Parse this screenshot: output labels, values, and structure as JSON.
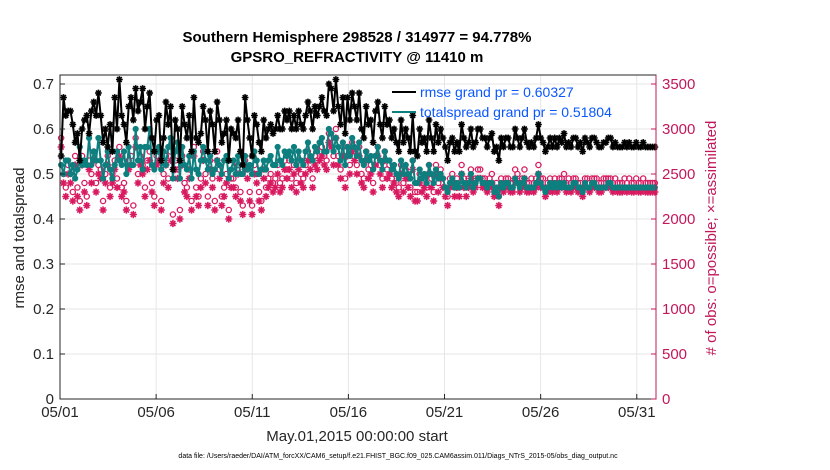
{
  "chart_data": {
    "type": "line",
    "title": "Southern Hemisphere 298528 / 314977 = 94.778%",
    "subtitle": "GPSRO_REFRACTIVITY @ 11410 m",
    "xlabel": "May.01,2015 00:00:00 start",
    "ylabel": "rmse and totalspread",
    "y2label": "# of obs: o=possible; ×=assimilated",
    "footer": "data file: /Users/raeder/DAI/ATM_forcXX/CAM6_setup/f.e21.FHIST_BGC.f09_025.CAM6assim.011/Diags_NTrS_2015-05/obs_diag_output.nc",
    "x_ticks": [
      "05/01",
      "05/06",
      "05/11",
      "05/16",
      "05/21",
      "05/26",
      "05/31"
    ],
    "x_tick_days": [
      0,
      5,
      10,
      15,
      20,
      25,
      30
    ],
    "xlim_days": [
      0,
      31
    ],
    "ylim": [
      0,
      0.72
    ],
    "y_ticks": [
      "0",
      "0.1",
      "0.2",
      "0.3",
      "0.4",
      "0.5",
      "0.6",
      "0.7"
    ],
    "y2lim": [
      0,
      3600
    ],
    "y2_ticks": [
      "0",
      "500",
      "1000",
      "1500",
      "2000",
      "2500",
      "3000",
      "3500"
    ],
    "grid": true,
    "legend_position": "top-right",
    "colors": {
      "rmse": "#000000",
      "totalspread": "#0e7f7f",
      "obs": "#d81b60",
      "legend_text": "#0a57ff",
      "right_axis": "#c2185b",
      "grid": "#e6e6e6"
    },
    "series": [
      {
        "name": "rmse grand pr = 0.60327",
        "axis": "left",
        "marker": "asterisk",
        "values": [
          0.54,
          0.67,
          0.63,
          0.64,
          0.64,
          0.61,
          0.57,
          0.59,
          0.53,
          0.6,
          0.62,
          0.63,
          0.59,
          0.64,
          0.66,
          0.63,
          0.68,
          0.63,
          0.57,
          0.6,
          0.56,
          0.61,
          0.55,
          0.67,
          0.6,
          0.71,
          0.63,
          0.61,
          0.57,
          0.65,
          0.67,
          0.62,
          0.69,
          0.64,
          0.66,
          0.69,
          0.6,
          0.65,
          0.68,
          0.58,
          0.55,
          0.62,
          0.63,
          0.53,
          0.58,
          0.66,
          0.61,
          0.65,
          0.51,
          0.62,
          0.6,
          0.53,
          0.65,
          0.61,
          0.58,
          0.63,
          0.55,
          0.67,
          0.58,
          0.57,
          0.59,
          0.65,
          0.62,
          0.55,
          0.64,
          0.61,
          0.55,
          0.66,
          0.62,
          0.57,
          0.59,
          0.62,
          0.53,
          0.6,
          0.59,
          0.58,
          0.62,
          0.55,
          0.52,
          0.67,
          0.62,
          0.58,
          0.54,
          0.63,
          0.61,
          0.57,
          0.55,
          0.62,
          0.58,
          0.6,
          0.61,
          0.59,
          0.6,
          0.63,
          0.6,
          0.6,
          0.64,
          0.62,
          0.64,
          0.6,
          0.63,
          0.6,
          0.64,
          0.61,
          0.6,
          0.63,
          0.66,
          0.64,
          0.6,
          0.65,
          0.63,
          0.65,
          0.67,
          0.64,
          0.63,
          0.7,
          0.69,
          0.64,
          0.71,
          0.65,
          0.61,
          0.67,
          0.59,
          0.67,
          0.62,
          0.68,
          0.65,
          0.62,
          0.68,
          0.6,
          0.58,
          0.65,
          0.61,
          0.62,
          0.57,
          0.64,
          0.66,
          0.61,
          0.58,
          0.65,
          0.61,
          0.62,
          0.58,
          0.6,
          0.57,
          0.55,
          0.62,
          0.57,
          0.6,
          0.58,
          0.55,
          0.63,
          0.55,
          0.54,
          0.6,
          0.57,
          0.58,
          0.55,
          0.62,
          0.58,
          0.55,
          0.61,
          0.57,
          0.6,
          0.58,
          0.56,
          0.53,
          0.57,
          0.58,
          0.55,
          0.57,
          0.55,
          0.61,
          0.58,
          0.56,
          0.57,
          0.6,
          0.56,
          0.57,
          0.6,
          0.6,
          0.58,
          0.58,
          0.56,
          0.58,
          0.59,
          0.55,
          0.56,
          0.53,
          0.58,
          0.56,
          0.58,
          0.58,
          0.56,
          0.56,
          0.6,
          0.58,
          0.56,
          0.58,
          0.6,
          0.57,
          0.56,
          0.57,
          0.56,
          0.58,
          0.61,
          0.58,
          0.57,
          0.55,
          0.56,
          0.58,
          0.56,
          0.58,
          0.56,
          0.58,
          0.57,
          0.59,
          0.56,
          0.57,
          0.56,
          0.58,
          0.58,
          0.56,
          0.57,
          0.55,
          0.58,
          0.57,
          0.56,
          0.58,
          0.58,
          0.57,
          0.56,
          0.56,
          0.57,
          0.57,
          0.58,
          0.58,
          0.56,
          0.57,
          0.56,
          0.56,
          0.56,
          0.57,
          0.56,
          0.57,
          0.56,
          0.56,
          0.57,
          0.56,
          0.56,
          0.57,
          0.56,
          0.56,
          0.56,
          0.56,
          0.56
        ]
      },
      {
        "name": "totalspread grand pr = 0.51804",
        "axis": "left",
        "marker": "circle",
        "values": [
          0.52,
          0.5,
          0.53,
          0.53,
          0.5,
          0.52,
          0.49,
          0.51,
          0.56,
          0.52,
          0.53,
          0.52,
          0.58,
          0.52,
          0.55,
          0.53,
          0.58,
          0.53,
          0.49,
          0.52,
          0.55,
          0.51,
          0.49,
          0.52,
          0.55,
          0.53,
          0.52,
          0.55,
          0.5,
          0.56,
          0.52,
          0.52,
          0.6,
          0.53,
          0.56,
          0.51,
          0.56,
          0.56,
          0.6,
          0.52,
          0.51,
          0.55,
          0.56,
          0.51,
          0.55,
          0.52,
          0.56,
          0.58,
          0.49,
          0.55,
          0.57,
          0.49,
          0.56,
          0.52,
          0.51,
          0.54,
          0.49,
          0.55,
          0.51,
          0.5,
          0.53,
          0.56,
          0.53,
          0.51,
          0.54,
          0.5,
          0.51,
          0.53,
          0.52,
          0.5,
          0.53,
          0.54,
          0.49,
          0.51,
          0.53,
          0.5,
          0.54,
          0.5,
          0.5,
          0.54,
          0.51,
          0.52,
          0.5,
          0.55,
          0.53,
          0.5,
          0.51,
          0.53,
          0.51,
          0.53,
          0.54,
          0.52,
          0.52,
          0.56,
          0.53,
          0.52,
          0.55,
          0.54,
          0.55,
          0.53,
          0.56,
          0.52,
          0.55,
          0.53,
          0.52,
          0.55,
          0.57,
          0.54,
          0.53,
          0.56,
          0.55,
          0.57,
          0.58,
          0.55,
          0.55,
          0.6,
          0.59,
          0.55,
          0.58,
          0.56,
          0.53,
          0.57,
          0.52,
          0.56,
          0.54,
          0.58,
          0.56,
          0.54,
          0.57,
          0.53,
          0.52,
          0.55,
          0.53,
          0.54,
          0.51,
          0.54,
          0.56,
          0.53,
          0.51,
          0.55,
          0.53,
          0.53,
          0.51,
          0.52,
          0.5,
          0.49,
          0.53,
          0.5,
          0.52,
          0.5,
          0.49,
          0.53,
          0.48,
          0.48,
          0.51,
          0.49,
          0.5,
          0.48,
          0.52,
          0.5,
          0.48,
          0.51,
          0.49,
          0.5,
          0.49,
          0.47,
          0.46,
          0.48,
          0.49,
          0.47,
          0.48,
          0.47,
          0.5,
          0.48,
          0.47,
          0.48,
          0.5,
          0.47,
          0.48,
          0.49,
          0.49,
          0.48,
          0.48,
          0.47,
          0.48,
          0.48,
          0.46,
          0.47,
          0.45,
          0.48,
          0.47,
          0.48,
          0.48,
          0.47,
          0.47,
          0.49,
          0.48,
          0.47,
          0.48,
          0.49,
          0.47,
          0.47,
          0.47,
          0.47,
          0.48,
          0.5,
          0.48,
          0.47,
          0.46,
          0.47,
          0.48,
          0.47,
          0.48,
          0.47,
          0.48,
          0.47,
          0.48,
          0.47,
          0.47,
          0.47,
          0.48,
          0.48,
          0.47,
          0.47,
          0.46,
          0.48,
          0.47,
          0.47,
          0.48,
          0.48,
          0.47,
          0.47,
          0.47,
          0.47,
          0.47,
          0.48,
          0.48,
          0.47,
          0.47,
          0.47,
          0.47,
          0.47,
          0.47,
          0.47,
          0.47,
          0.47,
          0.47,
          0.47,
          0.47,
          0.47,
          0.47,
          0.47,
          0.47,
          0.47,
          0.47,
          0.47
        ]
      },
      {
        "name": "possible",
        "axis": "right",
        "marker": "circle",
        "values": [
          2900,
          2500,
          2350,
          2600,
          2500,
          2300,
          2700,
          2350,
          2200,
          2700,
          2400,
          2250,
          2650,
          2500,
          2750,
          2400,
          2600,
          2550,
          2200,
          2500,
          2700,
          2350,
          2500,
          2650,
          2450,
          2800,
          2350,
          2400,
          2200,
          2650,
          2700,
          2150,
          2900,
          2500,
          2700,
          2600,
          2350,
          2650,
          2750,
          2400,
          2250,
          2700,
          2750,
          2200,
          2500,
          2700,
          2450,
          2750,
          2050,
          2650,
          2550,
          2100,
          2700,
          2400,
          2350,
          2550,
          2200,
          2800,
          2350,
          2250,
          2450,
          2750,
          2500,
          2250,
          2650,
          2450,
          2200,
          2750,
          2550,
          2250,
          2350,
          2500,
          2100,
          2450,
          2450,
          2350,
          2600,
          2300,
          2150,
          2650,
          2550,
          2300,
          2150,
          2600,
          2500,
          2300,
          2200,
          2550,
          2350,
          2450,
          2500,
          2400,
          2450,
          2600,
          2400,
          2450,
          2650,
          2550,
          2650,
          2450,
          2600,
          2400,
          2650,
          2500,
          2450,
          2600,
          2750,
          2650,
          2450,
          2700,
          2650,
          2750,
          2800,
          2700,
          2650,
          2950,
          2900,
          2700,
          3000,
          2700,
          2550,
          2800,
          2450,
          2800,
          2600,
          2850,
          2750,
          2600,
          2800,
          2500,
          2450,
          2750,
          2550,
          2600,
          2400,
          2700,
          2800,
          2600,
          2450,
          2750,
          2550,
          2600,
          2450,
          2500,
          2400,
          2350,
          2600,
          2400,
          2550,
          2450,
          2350,
          2650,
          2300,
          2300,
          2500,
          2400,
          2450,
          2350,
          2600,
          2450,
          2300,
          2600,
          2400,
          2550,
          2450,
          2350,
          2250,
          2450,
          2500,
          2350,
          2450,
          2350,
          2600,
          2450,
          2350,
          2450,
          2550,
          2400,
          2450,
          2550,
          2550,
          2450,
          2450,
          2400,
          2450,
          2500,
          2350,
          2400,
          2250,
          2450,
          2400,
          2450,
          2450,
          2400,
          2400,
          2550,
          2500,
          2400,
          2450,
          2550,
          2400,
          2400,
          2450,
          2400,
          2450,
          2600,
          2450,
          2450,
          2350,
          2400,
          2450,
          2400,
          2450,
          2400,
          2450,
          2450,
          2500,
          2400,
          2450,
          2400,
          2450,
          2450,
          2400,
          2400,
          2350,
          2450,
          2450,
          2400,
          2450,
          2450,
          2450,
          2400,
          2400,
          2450,
          2450,
          2450,
          2450,
          2400,
          2450,
          2400,
          2400,
          2400,
          2450,
          2400,
          2450,
          2400,
          2400,
          2450,
          2400,
          2400,
          2450,
          2400,
          2400,
          2400,
          2400,
          2400
        ]
      },
      {
        "name": "assimilated",
        "axis": "right",
        "marker": "asterisk",
        "values": [
          2800,
          2400,
          2250,
          2500,
          2400,
          2200,
          2600,
          2250,
          2100,
          2600,
          2300,
          2150,
          2550,
          2400,
          2650,
          2300,
          2500,
          2450,
          2100,
          2400,
          2600,
          2250,
          2400,
          2550,
          2350,
          2700,
          2250,
          2300,
          2100,
          2550,
          2600,
          2050,
          2800,
          2400,
          2600,
          2500,
          2250,
          2550,
          2650,
          2300,
          2150,
          2600,
          2650,
          2100,
          2400,
          2600,
          2350,
          2650,
          1950,
          2550,
          2450,
          2000,
          2600,
          2300,
          2250,
          2450,
          2100,
          2700,
          2250,
          2150,
          2350,
          2650,
          2400,
          2150,
          2550,
          2350,
          2100,
          2650,
          2450,
          2150,
          2250,
          2400,
          2000,
          2350,
          2350,
          2250,
          2500,
          2200,
          2050,
          2550,
          2450,
          2200,
          2050,
          2500,
          2400,
          2200,
          2100,
          2450,
          2250,
          2350,
          2400,
          2300,
          2350,
          2500,
          2300,
          2350,
          2550,
          2450,
          2550,
          2350,
          2500,
          2300,
          2550,
          2400,
          2350,
          2500,
          2650,
          2550,
          2350,
          2600,
          2550,
          2650,
          2700,
          2600,
          2550,
          2850,
          2800,
          2600,
          2900,
          2600,
          2450,
          2700,
          2350,
          2700,
          2500,
          2750,
          2650,
          2500,
          2700,
          2400,
          2350,
          2650,
          2450,
          2500,
          2300,
          2600,
          2700,
          2500,
          2350,
          2650,
          2450,
          2500,
          2350,
          2400,
          2300,
          2250,
          2500,
          2300,
          2450,
          2350,
          2250,
          2550,
          2200,
          2200,
          2400,
          2300,
          2350,
          2250,
          2500,
          2350,
          2200,
          2500,
          2300,
          2450,
          2350,
          2250,
          2150,
          2350,
          2400,
          2250,
          2350,
          2250,
          2500,
          2350,
          2250,
          2350,
          2450,
          2300,
          2350,
          2450,
          2450,
          2350,
          2350,
          2300,
          2350,
          2400,
          2250,
          2300,
          2150,
          2350,
          2300,
          2350,
          2350,
          2300,
          2300,
          2450,
          2400,
          2300,
          2350,
          2450,
          2300,
          2300,
          2350,
          2300,
          2350,
          2500,
          2350,
          2350,
          2250,
          2300,
          2350,
          2300,
          2350,
          2300,
          2350,
          2350,
          2400,
          2300,
          2350,
          2300,
          2350,
          2350,
          2300,
          2300,
          2250,
          2350,
          2350,
          2300,
          2350,
          2350,
          2350,
          2300,
          2300,
          2350,
          2350,
          2350,
          2350,
          2300,
          2350,
          2300,
          2300,
          2300,
          2350,
          2300,
          2350,
          2300,
          2300,
          2350,
          2300,
          2300,
          2350,
          2300,
          2300,
          2300,
          2300,
          2300
        ]
      }
    ]
  }
}
